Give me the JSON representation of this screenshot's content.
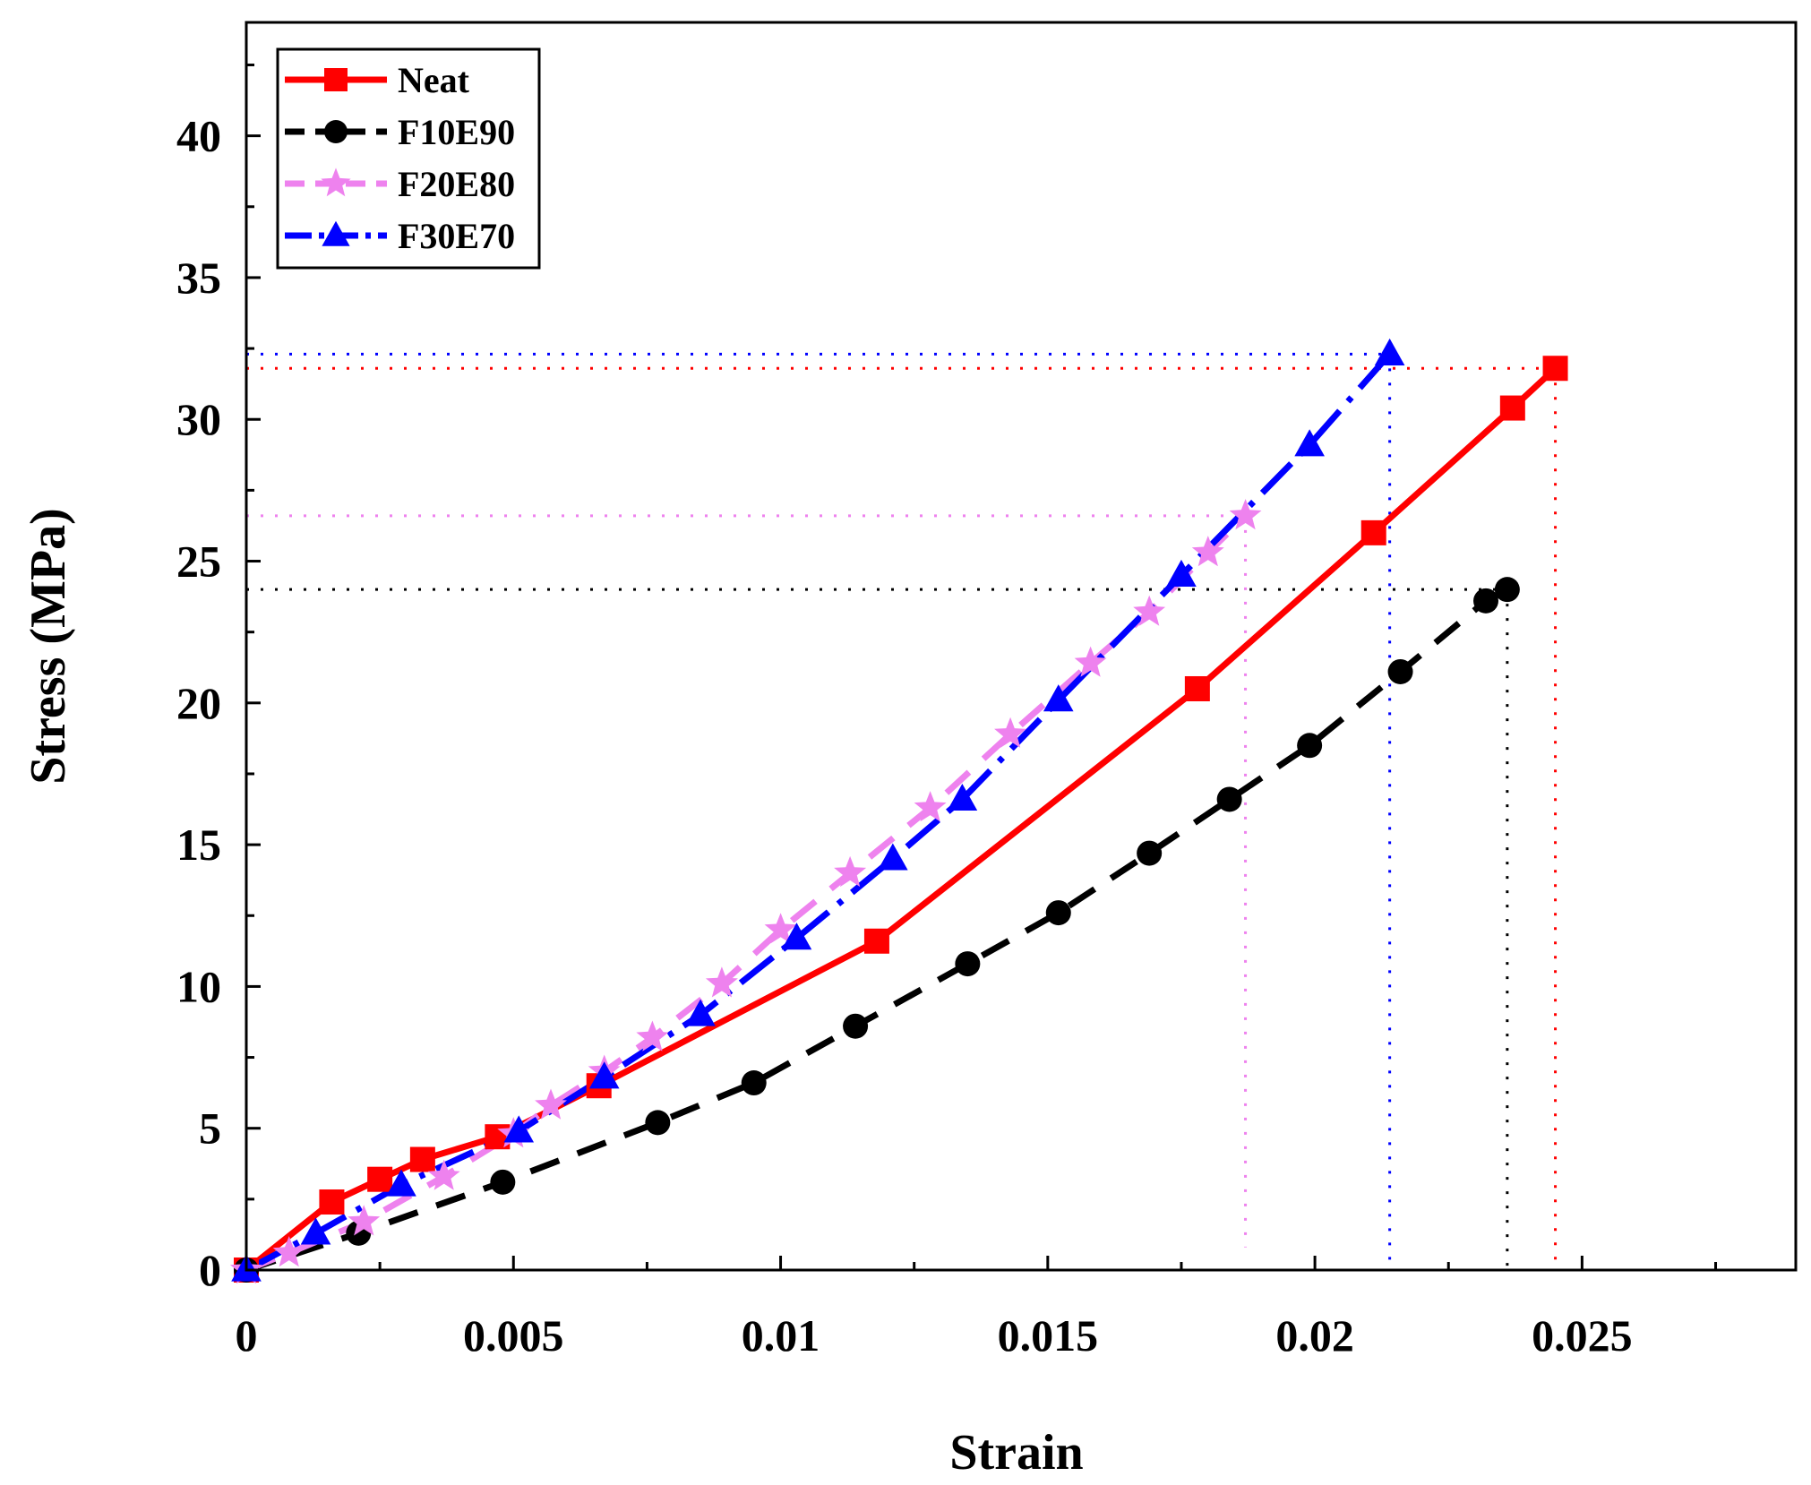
{
  "chart_data": {
    "type": "line",
    "title": "",
    "xlabel": "Strain",
    "ylabel": "Stress (MPa)",
    "xlim": [
      0,
      0.029
    ],
    "ylim": [
      0,
      44
    ],
    "xticks": [
      0,
      0.005,
      0.01,
      0.015,
      0.02,
      0.025
    ],
    "xtick_labels": [
      "0",
      "0.005",
      "0.01",
      "0.015",
      "0.02",
      "0.025"
    ],
    "yticks": [
      0,
      5,
      10,
      15,
      20,
      25,
      30,
      35,
      40
    ],
    "ytick_labels": [
      "0",
      "5",
      "10",
      "15",
      "20",
      "25",
      "30",
      "35",
      "40"
    ],
    "grid": false,
    "legend_position": "top-left",
    "series": [
      {
        "name": "Neat",
        "color": "#ff0000",
        "marker": "square",
        "linestyle": "solid",
        "x": [
          0,
          0.0016,
          0.0025,
          0.0033,
          0.0047,
          0.0066,
          0.0118,
          0.0178,
          0.0211,
          0.0237,
          0.0245
        ],
        "y": [
          0,
          2.4,
          3.2,
          3.9,
          4.7,
          6.5,
          11.6,
          20.5,
          26.0,
          30.4,
          31.8
        ],
        "peak": {
          "strain": 0.0245,
          "stress": 31.8
        }
      },
      {
        "name": "F10E90",
        "color": "#000000",
        "marker": "circle",
        "linestyle": "dashed",
        "x": [
          0,
          0.0021,
          0.0048,
          0.0077,
          0.0095,
          0.0114,
          0.0135,
          0.0152,
          0.0169,
          0.0184,
          0.0199,
          0.0216,
          0.0232,
          0.0236
        ],
        "y": [
          0,
          1.3,
          3.1,
          5.2,
          6.6,
          8.6,
          10.8,
          12.6,
          14.7,
          16.6,
          18.5,
          21.1,
          23.6,
          24.0
        ],
        "peak": {
          "strain": 0.0236,
          "stress": 24.0
        }
      },
      {
        "name": "F20E80",
        "color": "#ee82ee",
        "marker": "star",
        "linestyle": "dashed",
        "x": [
          0,
          0.0008,
          0.0022,
          0.0037,
          0.005,
          0.0057,
          0.0067,
          0.0076,
          0.0089,
          0.01,
          0.0113,
          0.0128,
          0.0143,
          0.0158,
          0.0169,
          0.018,
          0.0187
        ],
        "y": [
          0,
          0.6,
          1.7,
          3.3,
          4.8,
          5.8,
          7.0,
          8.2,
          10.1,
          12.0,
          14.0,
          16.3,
          18.9,
          21.4,
          23.2,
          25.3,
          26.6
        ],
        "peak": {
          "strain": 0.0187,
          "stress": 26.6
        }
      },
      {
        "name": "F30E70",
        "color": "#0000ff",
        "marker": "triangle",
        "linestyle": "dashdot",
        "x": [
          0,
          0.0013,
          0.0029,
          0.0051,
          0.0067,
          0.0085,
          0.0103,
          0.0121,
          0.0134,
          0.0152,
          0.0175,
          0.0199,
          0.0214
        ],
        "y": [
          0,
          1.3,
          3.0,
          4.9,
          6.8,
          9.0,
          11.7,
          14.5,
          16.6,
          20.1,
          24.5,
          29.1,
          32.3
        ],
        "peak": {
          "strain": 0.0214,
          "stress": 32.3
        }
      }
    ]
  }
}
